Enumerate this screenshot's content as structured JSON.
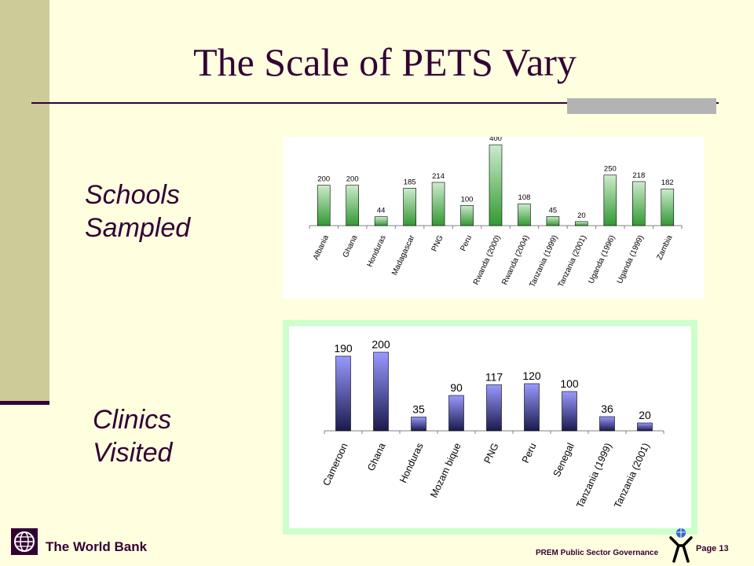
{
  "slide": {
    "title": "The Scale of PETS Vary",
    "schools_label_line1": "Schools",
    "schools_label_line2": "Sampled",
    "clinics_label_line1": "Clinics",
    "clinics_label_line2": "Visited"
  },
  "footer": {
    "org": "The World Bank",
    "unit": "PREM Public Sector Governance",
    "page": "Page 13"
  },
  "colors": {
    "background": "#FFFFE0",
    "accent": "#330033",
    "schools_bar_top": "#CCEBCC",
    "schools_bar_bottom": "#339933",
    "clinics_bar_top": "#9999FF",
    "clinics_bar_bottom": "#1A1A4D",
    "clinics_frame": "#CCFFCC"
  },
  "chart_data": [
    {
      "type": "bar",
      "categories": [
        "Albania",
        "Ghana",
        "Honduras",
        "Madagascar",
        "PNG",
        "Peru",
        "Rwanda (2000)",
        "Rwanda (2004)",
        "Tanzania (1999)",
        "Tanzania (2001)",
        "Uganda (1996)",
        "Uganda (1999)",
        "Zambia"
      ],
      "values": [
        200,
        200,
        44,
        185,
        214,
        100,
        400,
        108,
        45,
        20,
        250,
        218,
        182
      ],
      "ylim": [
        0,
        420
      ],
      "grid": false,
      "legend": "none"
    },
    {
      "type": "bar",
      "categories": [
        "Cameroon",
        "Ghana",
        "Honduras",
        "Mozambique",
        "PNG",
        "Peru",
        "Senegal",
        "Tanzania (1999)",
        "Tanzania (2001)"
      ],
      "tick_labels": [
        "Cameroon",
        "Ghana",
        "Honduras",
        "Mozam bique",
        "PNG",
        "Peru",
        "Senegal",
        "Tanzania (1999)",
        "Tanzania (2001)"
      ],
      "values": [
        190,
        200,
        35,
        90,
        117,
        120,
        100,
        36,
        20
      ],
      "ylim": [
        0,
        210
      ],
      "grid": false,
      "legend": "none"
    }
  ]
}
